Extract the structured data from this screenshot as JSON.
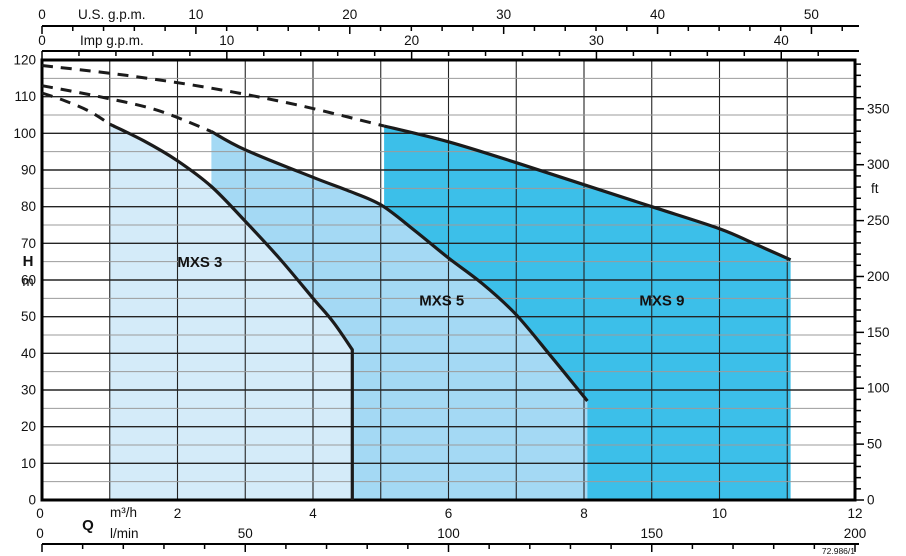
{
  "chart_data": {
    "type": "area",
    "title": "",
    "description": "Pump performance chart: head H versus flow rate Q with operating ranges for three pump models",
    "legend_position": "inside-regions",
    "grid": "on",
    "x_axis_bottom": {
      "name": "Q",
      "unit_primary": "m³/h",
      "unit_secondary": "l/min",
      "m3h_labeled_ticks": [
        0,
        2,
        4,
        6,
        8,
        10,
        12
      ],
      "m3h_range": [
        0,
        12
      ],
      "m3h_grid_step": 1,
      "lmin_labeled_ticks": [
        0,
        50,
        100,
        150,
        200
      ],
      "lmin_range": [
        0,
        200
      ],
      "lmin_minor_tick_step": 10
    },
    "x_axis_top": {
      "us_gpm": {
        "label": "U.S. g.p.m.",
        "labeled_ticks": [
          0,
          10,
          20,
          30,
          40,
          50
        ],
        "range": [
          0,
          52.83
        ],
        "minor_tick_step": 2
      },
      "imp_gpm": {
        "label": "Imp g.p.m.",
        "labeled_ticks": [
          0,
          10,
          20,
          30,
          40
        ],
        "range": [
          0,
          43.99
        ],
        "minor_tick_step": 2
      }
    },
    "y_axis_left": {
      "name": "H",
      "unit": "m",
      "labeled_ticks": [
        0,
        10,
        20,
        30,
        40,
        50,
        60,
        70,
        80,
        90,
        100,
        110,
        120
      ],
      "range": [
        0,
        120
      ],
      "grid_minor_step": 5,
      "grid_major_step": 10
    },
    "y_axis_right": {
      "unit": "ft",
      "labeled_ticks": [
        0,
        50,
        100,
        150,
        200,
        250,
        300,
        350
      ],
      "minor_tick_step": 10,
      "meters_per_foot": 0.3048
    },
    "series": [
      {
        "name": "MXS 3",
        "fill_color": "#d4ebf9",
        "dashed_curve_q_h": [
          [
            0,
            111
          ],
          [
            0.35,
            108.8
          ],
          [
            0.7,
            106.0
          ],
          [
            1.0,
            102.5
          ]
        ],
        "solid_curve_q_h": [
          [
            1.0,
            102.5
          ],
          [
            1.5,
            98
          ],
          [
            2.0,
            92.5
          ],
          [
            2.5,
            85.5
          ],
          [
            3.0,
            76
          ],
          [
            3.5,
            66
          ],
          [
            4.0,
            55
          ],
          [
            4.3,
            48.5
          ],
          [
            4.58,
            41
          ]
        ],
        "vertical_drop_at_end": true,
        "label_pos_q_h": [
          2.33,
          63.5
        ]
      },
      {
        "name": "MXS 5",
        "fill_color": "#a4d9f4",
        "dashed_curve_q_h": [
          [
            0,
            113
          ],
          [
            0.85,
            110
          ],
          [
            1.7,
            106.3
          ],
          [
            2.5,
            100.5
          ]
        ],
        "solid_curve_q_h": [
          [
            2.5,
            100.5
          ],
          [
            3.0,
            95.5
          ],
          [
            4.0,
            88
          ],
          [
            4.5,
            84.5
          ],
          [
            5.0,
            80.5
          ],
          [
            5.5,
            73.5
          ],
          [
            6.0,
            66
          ],
          [
            6.5,
            59
          ],
          [
            7.0,
            50.5
          ],
          [
            7.5,
            39.5
          ],
          [
            8.05,
            27
          ]
        ],
        "vertical_drop_at_end": false,
        "label_pos_q_h": [
          5.9,
          53
        ]
      },
      {
        "name": "MXS 9",
        "fill_color": "#3cbfe9",
        "dashed_curve_q_h": [
          [
            0,
            118.5
          ],
          [
            1.25,
            115.8
          ],
          [
            2.5,
            112.3
          ],
          [
            3.75,
            107.8
          ],
          [
            5.05,
            102
          ]
        ],
        "solid_curve_q_h": [
          [
            5.05,
            102
          ],
          [
            6,
            97.7
          ],
          [
            7,
            92
          ],
          [
            8,
            86
          ],
          [
            9,
            80
          ],
          [
            10,
            74
          ],
          [
            10.5,
            70
          ],
          [
            11.05,
            65.5
          ]
        ],
        "vertical_drop_at_end": false,
        "label_pos_q_h": [
          9.15,
          53
        ]
      }
    ],
    "ref_number": "72.986/1",
    "colors": {
      "curve": "#1b1b1b",
      "grid_major": "#242424",
      "grid_minor": "#9b9b9b",
      "border": "#000000",
      "background": "#ffffff"
    }
  }
}
